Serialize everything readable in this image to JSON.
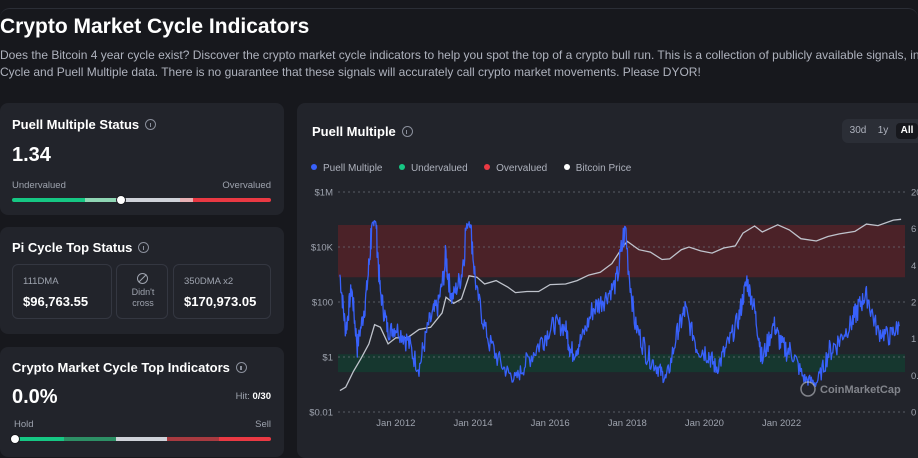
{
  "page": {
    "title": "Crypto Market Cycle Indicators",
    "description_line1": "Does the Bitcoin 4 year cycle exist? Discover the crypto market cycle indicators to help you spot the top of a crypto bull run. This is a collection of publicly available signals, including",
    "description_line2": "Cycle and Puell Multiple data. There is no guarantee that these signals will accurately call crypto market movements. Please DYOR!"
  },
  "puell_status": {
    "title": "Puell Multiple Status",
    "value": "1.34",
    "left_label": "Undervalued",
    "right_label": "Overvalued",
    "gauge_position": 0.42,
    "info_icon": "info-icon"
  },
  "pi_cycle": {
    "title": "Pi Cycle Top Status",
    "dma111_label": "111DMA",
    "dma111_value": "$96,763.55",
    "cross_icon": "no-cross-icon",
    "cross_text_1": "Didn't",
    "cross_text_2": "cross",
    "dma350_label": "350DMA x2",
    "dma350_value": "$170,973.05"
  },
  "top_indicators": {
    "title": "Crypto Market Cycle Top Indicators",
    "value": "0.0%",
    "hit_label": "Hit:",
    "hit_value": "0/30",
    "left_label": "Hold",
    "right_label": "Sell",
    "gauge_position": 0.0
  },
  "chart_card": {
    "title": "Puell Multiple",
    "tabs": [
      "30d",
      "1y",
      "All"
    ],
    "active_tab": "All",
    "watermark": "CoinMarketCap",
    "watermark_icon": "coinmarketcap-logo-icon"
  },
  "colors": {
    "green": "#16c784",
    "red": "#ea3943",
    "gray": "#cfd2d9",
    "puell_line": "#3861fb",
    "price_line": "#bfc3cc",
    "overvalued_band": "#5a2228",
    "undervalued_band": "#143b30"
  },
  "chart_data": {
    "type": "line",
    "title": "Puell Multiple",
    "legend": [
      "Puell Multiple",
      "Undervalued",
      "Overvalued",
      "Bitcoin Price"
    ],
    "legend_colors": [
      "#3861fb",
      "#16c784",
      "#ea3943",
      "#ffffff"
    ],
    "left_axis_ticks": [
      "$1M",
      "$10K",
      "$100",
      "$1",
      "$0.01"
    ],
    "right_axis_ticks": [
      "20",
      "6",
      "4",
      "2",
      "1",
      "0.5",
      "0"
    ],
    "x_ticks": [
      "Jan 2012",
      "Jan 2014",
      "Jan 2016",
      "Jan 2018",
      "Jan 2020",
      "Jan 2022"
    ],
    "x_range": [
      2010.5,
      2025.2
    ],
    "price_log10_range": [
      -2,
      6
    ],
    "overvalued_band_log10": [
      2.9,
      4.8
    ],
    "undervalued_band_log10": [
      -0.55,
      0.1
    ],
    "bitcoin_price_series": {
      "name": "Bitcoin Price",
      "x": [
        2010.55,
        2010.7,
        2010.9,
        2011.1,
        2011.3,
        2011.45,
        2011.6,
        2011.8,
        2012.0,
        2012.3,
        2012.6,
        2012.9,
        2013.2,
        2013.3,
        2013.5,
        2013.7,
        2013.9,
        2014.1,
        2014.3,
        2014.6,
        2014.9,
        2015.1,
        2015.4,
        2015.7,
        2016.0,
        2016.4,
        2016.7,
        2017.0,
        2017.3,
        2017.6,
        2017.9,
        2018.0,
        2018.3,
        2018.6,
        2018.9,
        2019.1,
        2019.4,
        2019.6,
        2019.9,
        2020.2,
        2020.5,
        2020.8,
        2021.0,
        2021.3,
        2021.5,
        2021.9,
        2022.2,
        2022.5,
        2022.9,
        2023.2,
        2023.5,
        2023.9,
        2024.2,
        2024.5,
        2024.9,
        2025.1
      ],
      "y": [
        0.06,
        0.08,
        0.3,
        0.9,
        3,
        15,
        12,
        3,
        5,
        5,
        10,
        12,
        40,
        150,
        90,
        130,
        900,
        800,
        450,
        600,
        350,
        220,
        240,
        240,
        430,
        450,
        600,
        950,
        1200,
        2500,
        11000,
        16000,
        8000,
        6500,
        3500,
        3700,
        8000,
        10000,
        7200,
        6000,
        9200,
        11000,
        32000,
        58000,
        35000,
        64000,
        42000,
        20000,
        16500,
        24000,
        30000,
        37000,
        68000,
        60000,
        95000,
        102000
      ]
    },
    "puell_multiple_series": {
      "name": "Puell Multiple",
      "x": [
        2010.55,
        2010.7,
        2010.85,
        2011.0,
        2011.2,
        2011.35,
        2011.45,
        2011.6,
        2011.8,
        2012.0,
        2012.3,
        2012.6,
        2012.85,
        2013.1,
        2013.3,
        2013.45,
        2013.7,
        2013.9,
        2014.1,
        2014.4,
        2014.8,
        2015.1,
        2015.4,
        2015.8,
        2016.1,
        2016.4,
        2016.55,
        2016.8,
        2017.1,
        2017.4,
        2017.7,
        2017.95,
        2018.2,
        2018.5,
        2018.8,
        2019.0,
        2019.3,
        2019.5,
        2019.8,
        2020.1,
        2020.3,
        2020.6,
        2020.9,
        2021.1,
        2021.3,
        2021.5,
        2021.8,
        2022.0,
        2022.3,
        2022.6,
        2022.9,
        2023.2,
        2023.5,
        2023.8,
        2024.0,
        2024.2,
        2024.5,
        2024.8,
        2025.05
      ],
      "y": [
        3.5,
        1.2,
        2.8,
        0.9,
        2.0,
        5.5,
        10,
        2.5,
        1.2,
        1.3,
        1.0,
        0.6,
        1.4,
        2.0,
        4.5,
        2.2,
        3.5,
        9,
        2.5,
        1.0,
        0.6,
        0.45,
        0.7,
        1.0,
        1.4,
        1.3,
        0.8,
        1.0,
        1.8,
        2.2,
        3.0,
        6.5,
        1.4,
        0.8,
        0.6,
        0.45,
        1.2,
        1.8,
        0.9,
        0.8,
        0.6,
        0.9,
        1.6,
        3.2,
        1.8,
        0.7,
        1.4,
        0.9,
        0.8,
        0.45,
        0.4,
        0.8,
        1.0,
        1.4,
        1.9,
        2.4,
        1.2,
        1.1,
        1.34
      ]
    }
  }
}
